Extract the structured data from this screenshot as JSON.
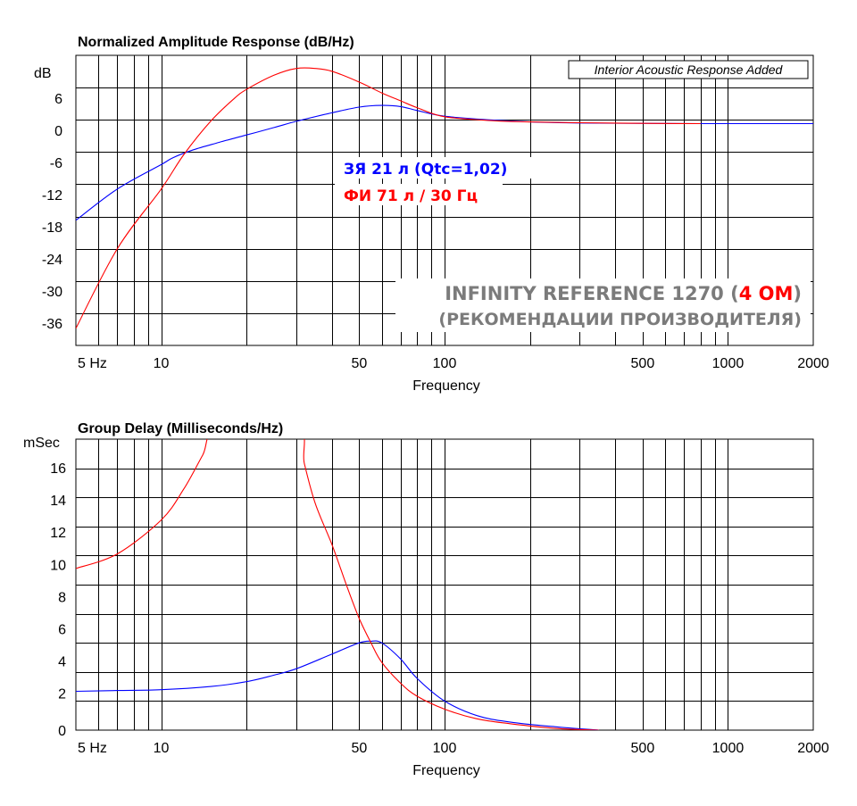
{
  "colors": {
    "series_blue": "#0000ff",
    "series_red": "#ff0000",
    "grid": "#000000",
    "brand_gray": "#7b7b7b"
  },
  "overlay": {
    "legend_blue": "ЗЯ 21 л (Qtc=1,02)",
    "legend_red": "ФИ 71 л / 30 Гц",
    "brand_pre": "INFINITY REFERENCE 1270 (",
    "brand_accent": "4 ОМ",
    "brand_post": ")",
    "brand_line2": "(РЕКОМЕНДАЦИИ ПРОИЗВОДИТЕЛЯ)"
  },
  "chart_data": [
    {
      "type": "line",
      "title": "Normalized Amplitude Response (dB/Hz)",
      "xlabel": "Frequency",
      "ylabel": "dB",
      "x_scale": "log",
      "xlim": [
        5,
        2000
      ],
      "ylim": [
        -39,
        12
      ],
      "x_tick_labels": [
        "5  Hz",
        "10",
        "50",
        "100",
        "500",
        "1000",
        "2000"
      ],
      "y_tick_labels": [
        "6",
        "0",
        "-6",
        "-12",
        "-18",
        "-24",
        "-30",
        "-36"
      ],
      "annotation": "Interior Acoustic Response Added",
      "grid": true,
      "series": [
        {
          "color": "blue",
          "x": [
            5,
            7,
            10,
            11,
            13,
            16,
            20,
            25,
            30,
            40,
            50,
            60,
            70,
            80,
            100,
            150,
            200,
            300,
            500,
            800,
            2000
          ],
          "y": [
            -17,
            -11.5,
            -7.2,
            -6,
            -4.6,
            -3.3,
            -2,
            -0.7,
            0.4,
            1.9,
            2.9,
            3.2,
            3.0,
            2.3,
            1.3,
            0.6,
            0.3,
            0.1,
            0.05,
            0,
            0
          ]
        },
        {
          "color": "red",
          "x": [
            5,
            7,
            10,
            12,
            15,
            18,
            20,
            25,
            30,
            35,
            40,
            50,
            60,
            70,
            80,
            100,
            150,
            200,
            300,
            500,
            800
          ],
          "y": [
            -36,
            -22,
            -11.5,
            -5.5,
            0.5,
            4.3,
            6,
            8.5,
            9.7,
            9.7,
            9.2,
            7.3,
            5.4,
            4,
            2.8,
            1.2,
            0.5,
            0.3,
            0.15,
            0.05,
            0
          ]
        }
      ]
    },
    {
      "type": "line",
      "title": "Group Delay (Milliseconds/Hz)",
      "xlabel": "Frequency",
      "ylabel": "mSec",
      "x_scale": "log",
      "xlim": [
        5,
        2000
      ],
      "ylim": [
        0,
        18
      ],
      "x_tick_labels": [
        "5  Hz",
        "10",
        "50",
        "100",
        "500",
        "1000",
        "2000"
      ],
      "y_tick_labels": [
        "16",
        "14",
        "12",
        "10",
        "8",
        "6",
        "4",
        "2",
        "0"
      ],
      "grid": true,
      "series": [
        {
          "color": "blue",
          "x": [
            5,
            7,
            10,
            15,
            20,
            25,
            30,
            40,
            50,
            55,
            60,
            70,
            80,
            100,
            130,
            170,
            250,
            350
          ],
          "y": [
            2.4,
            2.45,
            2.5,
            2.7,
            3.0,
            3.4,
            3.8,
            4.7,
            5.4,
            5.5,
            5.4,
            4.4,
            3.2,
            1.8,
            0.9,
            0.5,
            0.2,
            0
          ]
        },
        {
          "color": "red",
          "x": [
            5,
            7,
            10,
            12,
            14,
            16,
            30,
            32,
            35,
            40,
            45,
            50,
            55,
            60,
            70,
            80,
            100,
            130,
            170,
            250,
            350
          ],
          "y": [
            10,
            10.9,
            13,
            14.9,
            17,
            18.8,
            18.8,
            16.5,
            14,
            11.5,
            9,
            6.9,
            5.4,
            4.2,
            2.9,
            2.1,
            1.3,
            0.7,
            0.4,
            0.1,
            0
          ]
        }
      ]
    }
  ]
}
